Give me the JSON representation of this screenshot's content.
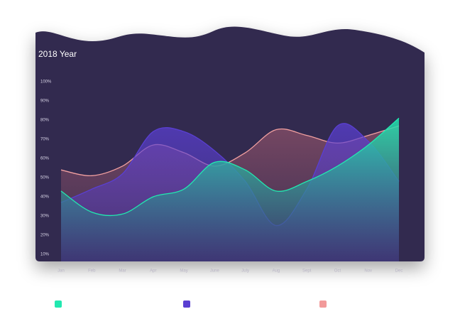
{
  "chart_data": {
    "type": "area",
    "title": "2018 Year",
    "categories": [
      "Jan",
      "Feb",
      "Mar",
      "Apr",
      "May",
      "June",
      "July",
      "Aug",
      "Sept",
      "Oct",
      "Nov",
      "Dec"
    ],
    "series": [
      {
        "color": "#22e8b0",
        "values": [
          43,
          32,
          31,
          40,
          44,
          58,
          54,
          43,
          48,
          56,
          67,
          81
        ]
      },
      {
        "color": "#5a3fd2",
        "values": [
          37,
          44,
          52,
          74,
          74,
          64,
          48,
          25,
          44,
          77,
          69,
          48
        ]
      },
      {
        "color": "#f2a0a0",
        "values": [
          54,
          51,
          56,
          67,
          63,
          56,
          63,
          75,
          72,
          68,
          72,
          77
        ]
      }
    ],
    "ylim": [
      10,
      100
    ],
    "yticks": [
      {
        "value": 100,
        "label": "100%"
      },
      {
        "value": 90,
        "label": "90%"
      },
      {
        "value": 80,
        "label": "80%"
      },
      {
        "value": 70,
        "label": "70%"
      },
      {
        "value": 60,
        "label": "60%"
      },
      {
        "value": 50,
        "label": "50%"
      },
      {
        "value": 40,
        "label": "40%"
      },
      {
        "value": 30,
        "label": "30%"
      },
      {
        "value": 20,
        "label": "20%"
      },
      {
        "value": 10,
        "label": "10%"
      }
    ]
  }
}
